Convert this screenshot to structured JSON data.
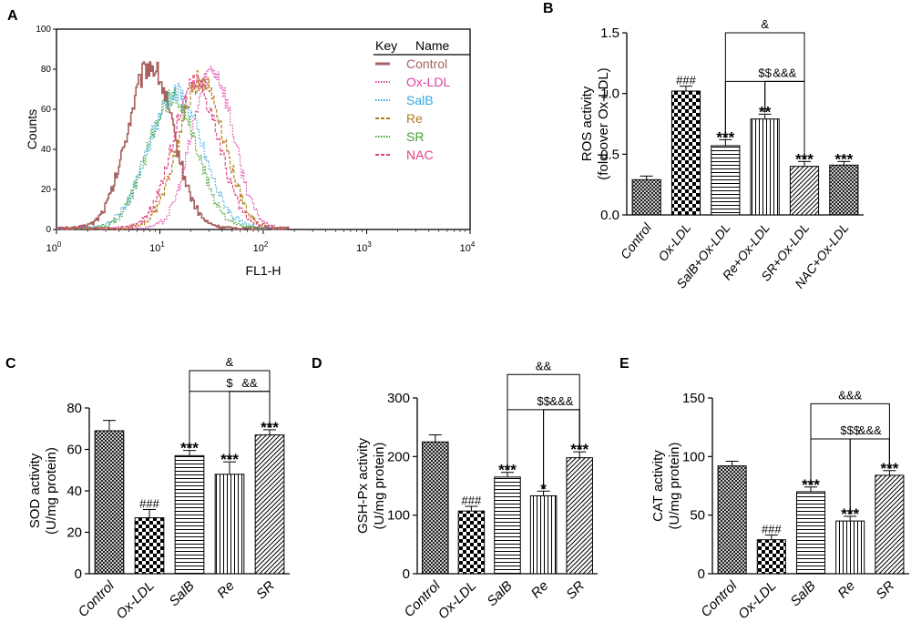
{
  "chart_data": [
    {
      "panel": "A",
      "type": "line",
      "xlabel": "FL1-H",
      "ylabel": "Counts",
      "xscale": "log",
      "xlim": [
        1,
        10000
      ],
      "ylim": [
        0,
        100
      ],
      "xticks": [
        {
          "b": "10",
          "e": "0"
        },
        {
          "b": "10",
          "e": "1"
        },
        {
          "b": "10",
          "e": "2"
        },
        {
          "b": "10",
          "e": "3"
        },
        {
          "b": "10",
          "e": "4"
        }
      ],
      "yticks": [
        "0",
        "20",
        "40",
        "60",
        "80",
        "100"
      ],
      "legend": {
        "title_key": "Key",
        "title_name": "Name",
        "position": "top-right"
      },
      "series": [
        {
          "name": "Control",
          "color": "#a86060",
          "style": "solid",
          "peak": 8,
          "width": 0.22,
          "height": 82
        },
        {
          "name": "Ox-LDL",
          "color": "#e040a0",
          "style": "dotted",
          "peak": 32,
          "width": 0.2,
          "height": 80
        },
        {
          "name": "SalB",
          "color": "#30a8e0",
          "style": "dotted",
          "peak": 14,
          "width": 0.26,
          "height": 68
        },
        {
          "name": "Re",
          "color": "#b07818",
          "style": "dashed",
          "peak": 25,
          "width": 0.22,
          "height": 75
        },
        {
          "name": "SR",
          "color": "#40a030",
          "style": "dotted",
          "peak": 13,
          "width": 0.24,
          "height": 66
        },
        {
          "name": "NAC",
          "color": "#e04080",
          "style": "dashed",
          "peak": 22,
          "width": 0.22,
          "height": 74
        }
      ]
    },
    {
      "panel": "B",
      "type": "bar",
      "ylabel1": "ROS activity",
      "ylabel2": "(fold over Ox-LDL)",
      "ylim": [
        0,
        1.5
      ],
      "yticks": [
        "0.0",
        "0.5",
        "1.0",
        "1.5"
      ],
      "categories": [
        "Control",
        "Ox-LDL",
        "SalB+Ox-LDL",
        "Re+Ox-LDL",
        "SR+Ox-LDL",
        "NAC+Ox-LDL"
      ],
      "values": [
        0.29,
        1.02,
        0.57,
        0.79,
        0.4,
        0.41
      ],
      "errors": [
        0.03,
        0.04,
        0.05,
        0.04,
        0.04,
        0.03
      ],
      "patterns": [
        "crosshatch",
        "checker",
        "hlines",
        "vlines",
        "diag",
        "crosshatch"
      ],
      "labels": [
        "",
        "###",
        "***",
        "**",
        "***",
        "***"
      ],
      "brackets": [
        {
          "from": 2,
          "to": 4,
          "level": 1.5,
          "label": "&"
        },
        {
          "from": 2,
          "to": 4,
          "level": 1.1,
          "label": "$$"
        },
        {
          "from": 3,
          "to": 4,
          "level": 1.1,
          "label": "&&&"
        }
      ]
    },
    {
      "panel": "C",
      "type": "bar",
      "ylabel1": "SOD activity",
      "ylabel2": "(U/mg protein)",
      "ylim": [
        0,
        80
      ],
      "yticks": [
        "0",
        "20",
        "40",
        "60",
        "80"
      ],
      "categories": [
        "Control",
        "Ox-LDL",
        "SalB",
        "Re",
        "SR"
      ],
      "values": [
        69,
        27,
        57,
        48,
        67
      ],
      "errors": [
        5,
        4,
        2.5,
        6,
        2.5
      ],
      "patterns": [
        "crosshatch",
        "checker",
        "hlines",
        "vlines",
        "diag"
      ],
      "labels": [
        "",
        "###",
        "***",
        "***",
        "***"
      ],
      "brackets": [
        {
          "from": 2,
          "to": 4,
          "level": 98,
          "label": "&"
        },
        {
          "from": 2,
          "to": 4,
          "level": 88,
          "label": "$"
        },
        {
          "from": 3,
          "to": 4,
          "level": 88,
          "label": "&&"
        }
      ]
    },
    {
      "panel": "D",
      "type": "bar",
      "ylabel1": "GSH-Px activity",
      "ylabel2": "(U/mg protein)",
      "ylim": [
        0,
        300
      ],
      "yticks": [
        "0",
        "100",
        "200",
        "300"
      ],
      "categories": [
        "Control",
        "Ox-LDL",
        "SalB",
        "Re",
        "SR"
      ],
      "values": [
        225,
        107,
        165,
        133,
        198
      ],
      "errors": [
        12,
        8,
        8,
        8,
        10
      ],
      "patterns": [
        "crosshatch",
        "checker",
        "hlines",
        "vlines",
        "diag"
      ],
      "labels": [
        "",
        "###",
        "***",
        "*",
        "***"
      ],
      "brackets": [
        {
          "from": 2,
          "to": 4,
          "level": 340,
          "label": "&&"
        },
        {
          "from": 2,
          "to": 4,
          "level": 280,
          "label": "$$"
        },
        {
          "from": 3,
          "to": 4,
          "level": 280,
          "label": "&&&"
        }
      ]
    },
    {
      "panel": "E",
      "type": "bar",
      "ylabel1": "CAT activity",
      "ylabel2": "(U/mg protein)",
      "ylim": [
        0,
        150
      ],
      "yticks": [
        "0",
        "50",
        "100",
        "150"
      ],
      "categories": [
        "Control",
        "Ox-LDL",
        "SalB",
        "Re",
        "SR"
      ],
      "values": [
        92,
        29,
        70,
        45,
        84
      ],
      "errors": [
        4,
        4,
        4,
        4,
        4
      ],
      "patterns": [
        "crosshatch",
        "checker",
        "hlines",
        "vlines",
        "diag"
      ],
      "labels": [
        "",
        "###",
        "***",
        "***",
        "***"
      ],
      "brackets": [
        {
          "from": 2,
          "to": 4,
          "level": 145,
          "label": "&&&"
        },
        {
          "from": 2,
          "to": 4,
          "level": 115,
          "label": "$$$"
        },
        {
          "from": 3,
          "to": 4,
          "level": 115,
          "label": "&&&"
        }
      ]
    }
  ]
}
